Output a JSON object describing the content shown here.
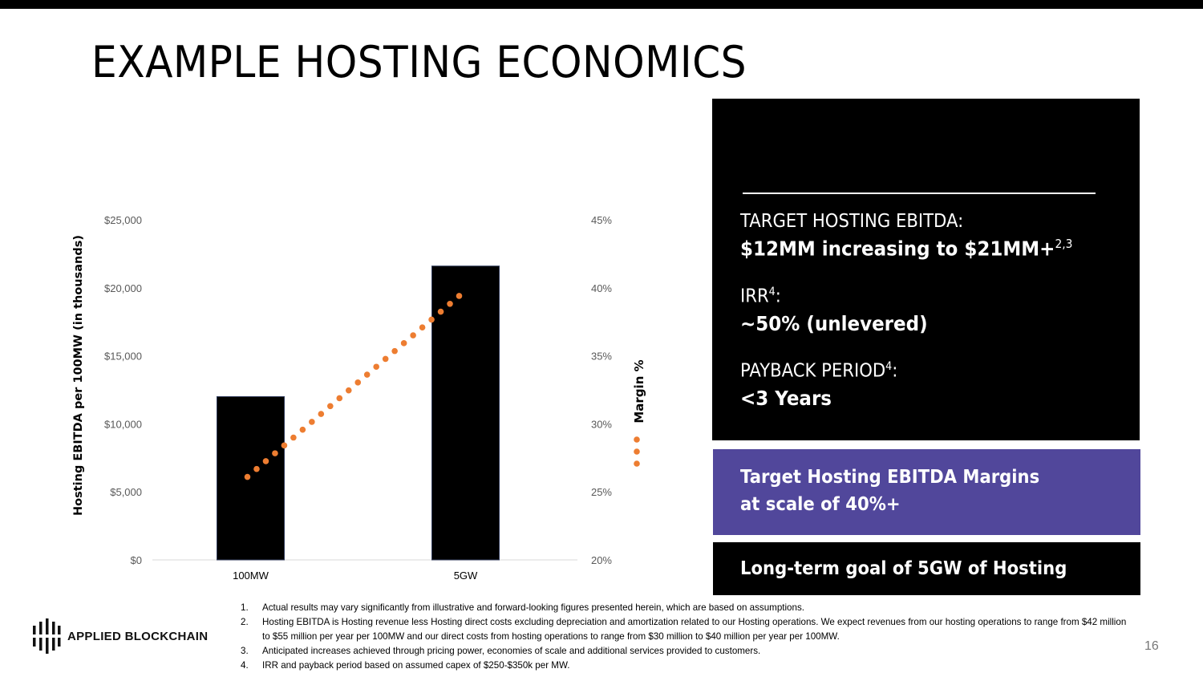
{
  "title": "EXAMPLE HOSTING ECONOMICS",
  "chart_data": {
    "type": "bar",
    "categories": [
      "100MW",
      "5GW"
    ],
    "series": [
      {
        "name": "Hosting EBITDA per 100MW (in thousands)",
        "type": "bar",
        "axis": "left",
        "values": [
          12000,
          21600
        ],
        "color": "#000000"
      },
      {
        "name": "Margin %",
        "type": "line-dotted",
        "axis": "right",
        "values": [
          26.1,
          39.4
        ],
        "color": "#ed7d31"
      }
    ],
    "ylabel": "Hosting EBITDA per 100MW (in thousands)",
    "y2label": "Margin %",
    "ylim": [
      0,
      25000
    ],
    "y2lim": [
      20,
      45
    ],
    "yticks": [
      "$0",
      "$5,000",
      "$10,000",
      "$15,000",
      "$20,000",
      "$25,000"
    ],
    "y2ticks": [
      "20%",
      "25%",
      "30%",
      "35%",
      "40%",
      "45%"
    ],
    "legend": "right",
    "grid": false
  },
  "panel": {
    "ebitda_label": "TARGET HOSTING EBITDA:",
    "ebitda_value": "$12MM increasing to $21MM+",
    "ebitda_sup": "2,3",
    "irr_label": "IRR",
    "irr_sup": "4",
    "irr_colon": ":",
    "irr_value": "~50% (unlevered)",
    "payback_label": "PAYBACK PERIOD",
    "payback_sup": "4",
    "payback_colon": ":",
    "payback_value": "<3 Years"
  },
  "margins_box": {
    "line1": "Target Hosting EBITDA Margins",
    "line2": "at scale of 40%+"
  },
  "goal_box": "Long-term goal of 5GW of Hosting",
  "footnotes": [
    {
      "n": "1.",
      "text": "Actual results may vary significantly from illustrative and forward-looking figures presented herein, which are based on assumptions."
    },
    {
      "n": "2.",
      "text": "Hosting EBITDA is Hosting revenue less Hosting direct costs excluding depreciation and amortization related to our Hosting operations. We expect revenues from our hosting operations to range from $42 million to $55 million per year per 100MW and our direct costs from hosting operations to range from $30 million to $40 million per year per 100MW."
    },
    {
      "n": "3.",
      "text": "Anticipated increases achieved through pricing power, economies of scale and additional services provided to customers."
    },
    {
      "n": "4.",
      "text": "IRR and payback period based on assumed capex of $250-$350k per MW."
    }
  ],
  "logo_text": "APPLIED BLOCKCHAIN",
  "page_number": "16"
}
